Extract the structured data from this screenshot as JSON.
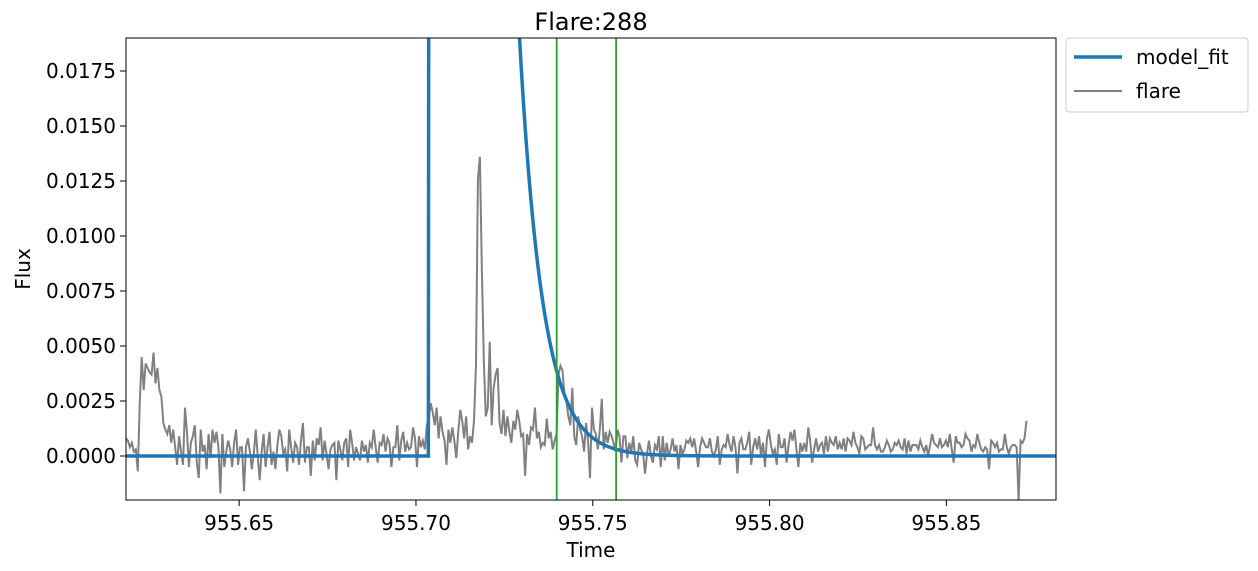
{
  "chart_data": {
    "type": "line",
    "title": "Flare:288",
    "xlabel": "Time",
    "ylabel": "Flux",
    "xlim": [
      955.618,
      955.881
    ],
    "ylim": [
      -0.002,
      0.019
    ],
    "xticks": [
      955.65,
      955.7,
      955.75,
      955.8,
      955.85
    ],
    "xtick_labels": [
      "955.65",
      "955.70",
      "955.75",
      "955.80",
      "955.85"
    ],
    "yticks": [
      0.0,
      0.0025,
      0.005,
      0.0075,
      0.01,
      0.0125,
      0.015,
      0.0175
    ],
    "ytick_labels": [
      "0.0000",
      "0.0025",
      "0.0050",
      "0.0075",
      "0.0100",
      "0.0125",
      "0.0150",
      "0.0175"
    ],
    "grid": false,
    "legend_position": "outside-top-right",
    "vlines": {
      "x": [
        955.7398,
        955.7566
      ],
      "color": "#2ca02c"
    },
    "series": [
      {
        "name": "model_fit",
        "color": "#1f77b4",
        "model": {
          "start": 955.7035,
          "rise_end": 955.7065,
          "baseline": 0.0,
          "peak": 0.6,
          "decay_tau": 0.0066
        }
      },
      {
        "name": "flare",
        "color": "#808080",
        "x_start": 955.618,
        "x_step": 0.000556,
        "values": [
          0.0008,
          0.0007,
          0.0004,
          0.0006,
          0.0002,
          0.0003,
          -0.0007,
          0.0024,
          0.0045,
          0.003,
          0.0042,
          0.004,
          0.0038,
          0.0037,
          0.0047,
          0.0033,
          0.004,
          0.003,
          0.0027,
          0.0015,
          0.0012,
          0.001,
          0.0014,
          0.0006,
          0.0012,
          0.0004,
          -0.0004,
          0.0009,
          0.0002,
          -0.0004,
          0.0022,
          0.0011,
          -0.0005,
          0.0006,
          0.0009,
          0.0014,
          -0.0003,
          -0.001,
          0.0012,
          0.0002,
          0.0005,
          -0.0006,
          0.001,
          -0.0001,
          0.0012,
          0.0006,
          0.0011,
          0.0004,
          -0.0017,
          0.001,
          -0.0005,
          0.0002,
          0.0007,
          0.0003,
          -0.0005,
          0.0006,
          0.0012,
          -0.0004,
          0.0004,
          0.0004,
          -0.0016,
          0.0004,
          0.0008,
          0.0002,
          -0.0006,
          0.0001,
          0.0012,
          0.0,
          -0.0011,
          0.0002,
          0.001,
          -0.0005,
          0.0004,
          0.0011,
          -0.0004,
          0.0002,
          -0.0006,
          0.0005,
          0.0012,
          0.0009,
          0.0001,
          0.0003,
          -0.0007,
          0.0012,
          0.0004,
          -0.0003,
          0.0006,
          0.0004,
          -0.0004,
          0.0007,
          0.0015,
          -0.0003,
          0.0004,
          0.0004,
          -0.0009,
          0.0007,
          -0.0002,
          0.0008,
          0.0005,
          0.0013,
          -0.0002,
          0.0007,
          0.0001,
          -0.0006,
          0.0003,
          0.0005,
          0.0006,
          -0.0011,
          0.0007,
          0.0003,
          -0.0002,
          0.0006,
          0.0008,
          -0.0005,
          0.0012,
          0.0006,
          -0.0002,
          0.0004,
          0.0001,
          -0.0002,
          0.0007,
          0.0002,
          0.0005,
          -0.0003,
          0.0006,
          0.0004,
          0.0012,
          0.0004,
          -0.0003,
          0.0006,
          0.0005,
          0.001,
          0.0002,
          0.0008,
          0.0006,
          -0.0005,
          0.0004,
          0.0004,
          0.0014,
          -0.0002,
          0.0007,
          0.0011,
          0.0002,
          0.0006,
          0.0003,
          0.0004,
          0.0013,
          0.0008,
          -0.0005,
          0.0009,
          0.0004,
          0.0007,
          0.0003,
          0.0014,
          0.0017,
          0.0024,
          0.002,
          0.0014,
          0.0022,
          0.0008,
          0.0018,
          0.0011,
          0.0007,
          -0.0004,
          0.0012,
          0.0006,
          0.0013,
          0.0007,
          -0.0001,
          0.0011,
          0.0021,
          0.0016,
          0.0008,
          0.0018,
          0.0003,
          0.0009,
          0.0006,
          0.0016,
          0.0041,
          0.0126,
          0.0136,
          0.0085,
          0.0043,
          0.0018,
          0.0022,
          0.0052,
          0.0014,
          0.0031,
          0.0037,
          0.004,
          0.0015,
          0.001,
          0.0021,
          0.0009,
          0.0018,
          0.0011,
          0.0006,
          0.0016,
          0.0012,
          0.0021,
          0.0016,
          0.0009,
          0.001,
          -0.0009,
          0.001,
          0.0005,
          0.0013,
          0.0012,
          0.0022,
          0.0008,
          0.0011,
          0.0004,
          0.0006,
          0.0005,
          0.0017,
          0.0008,
          0.0011,
          0.0003,
          0.0007,
          0.001,
          0.0037,
          0.0041,
          0.0039,
          0.0028,
          0.0025,
          0.0018,
          0.0014,
          0.0031,
          0.0009,
          0.0005,
          0.0018,
          0.0012,
          0.0009,
          0.0002,
          0.0015,
          0.0007,
          -0.001,
          0.0022,
          0.0012,
          0.001,
          0.0003,
          0.0012,
          0.0026,
          0.0003,
          0.0011,
          0.0006,
          0.0011,
          0.0009,
          0.0006,
          0.0002,
          0.0012,
          0.0009,
          -0.0003,
          0.0009,
          0.0009,
          -0.0001,
          0.0006,
          0.0002,
          0.0009,
          -0.0002,
          -0.0004,
          0.0006,
          0.0003,
          0.0001,
          -0.0008,
          0.0001,
          0.0007,
          0.0,
          -0.0003,
          0.0005,
          0.0003,
          0.0009,
          -0.0005,
          0.0009,
          -0.0002,
          0.0006,
          0.0,
          0.0003,
          0.0008,
          0.0002,
          0.0005,
          -0.0006,
          0.0005,
          0.0001,
          0.0003,
          0.0007,
          0.0006,
          0.0008,
          0.0004,
          0.0008,
          0.0002,
          -0.0005,
          0.0004,
          0.0008,
          0.0006,
          0.0004,
          0.0004,
          0.0008,
          0.0002,
          0.0,
          0.0003,
          0.0009,
          -0.0004,
          0.0003,
          0.0005,
          0.0004,
          0.001,
          0.0005,
          0.0002,
          0.0009,
          0.0004,
          -0.0008,
          0.0006,
          0.0008,
          0.0003,
          0.0003,
          0.0006,
          0.0011,
          -0.0004,
          0.0004,
          0.0008,
          0.0003,
          0.0009,
          0.0,
          0.0006,
          -0.0005,
          0.0008,
          0.0012,
          0.0005,
          0.0001,
          0.0003,
          -0.0004,
          0.001,
          0.0004,
          0.0004,
          0.0008,
          -0.0003,
          0.0005,
          0.0011,
          0.0007,
          0.0012,
          0.0003,
          -0.0005,
          0.0006,
          0.0002,
          0.0006,
          0.0002,
          0.0013,
          0.0007,
          -0.0003,
          0.0003,
          0.0008,
          0.0002,
          0.0005,
          0.0006,
          0.0001,
          0.0009,
          0.0002,
          0.0008,
          0.0006,
          0.0005,
          0.0009,
          0.0003,
          0.0006,
          0.0003,
          0.0008,
          0.0002,
          0.0008,
          0.0007,
          0.0005,
          0.0011,
          0.0006,
          0.0004,
          0.0001,
          0.0009,
          0.0008,
          0.0003,
          0.0004,
          0.0005,
          0.0005,
          0.0013,
          0.0005,
          0.0003,
          0.0005,
          0.0002,
          0.0002,
          0.0004,
          0.0007,
          0.0005,
          0.0002,
          0.0003,
          0.0006,
          0.0005,
          0.0007,
          0.0004,
          0.0003,
          0.0008,
          0.0001,
          0.0007,
          0.0002,
          0.0005,
          0.0005,
          0.0005,
          0.0003,
          0.0007,
          0.0004,
          0.0002,
          0.0005,
          0.0,
          0.0005,
          0.001,
          0.0006,
          0.0005,
          0.0004,
          0.0008,
          0.0004,
          0.0005,
          0.0007,
          0.0004,
          0.001,
          0.0003,
          -0.0003,
          0.0009,
          0.0006,
          0.0006,
          0.0004,
          0.0005,
          0.001,
          0.0008,
          0.0007,
          0.0002,
          0.0005,
          0.0004,
          0.001,
          0.0006,
          0.0003,
          0.0002,
          0.0004,
          0.0003,
          -0.0006,
          0.0007,
          0.0006,
          0.0004,
          0.0006,
          0.0002,
          0.0003,
          0.0003,
          0.001,
          0.0004,
          0.0001,
          0.0004,
          0.0005,
          0.0005,
          0.0004,
          -0.002,
          0.0007,
          0.0006,
          0.0008,
          0.0016
        ]
      }
    ]
  }
}
